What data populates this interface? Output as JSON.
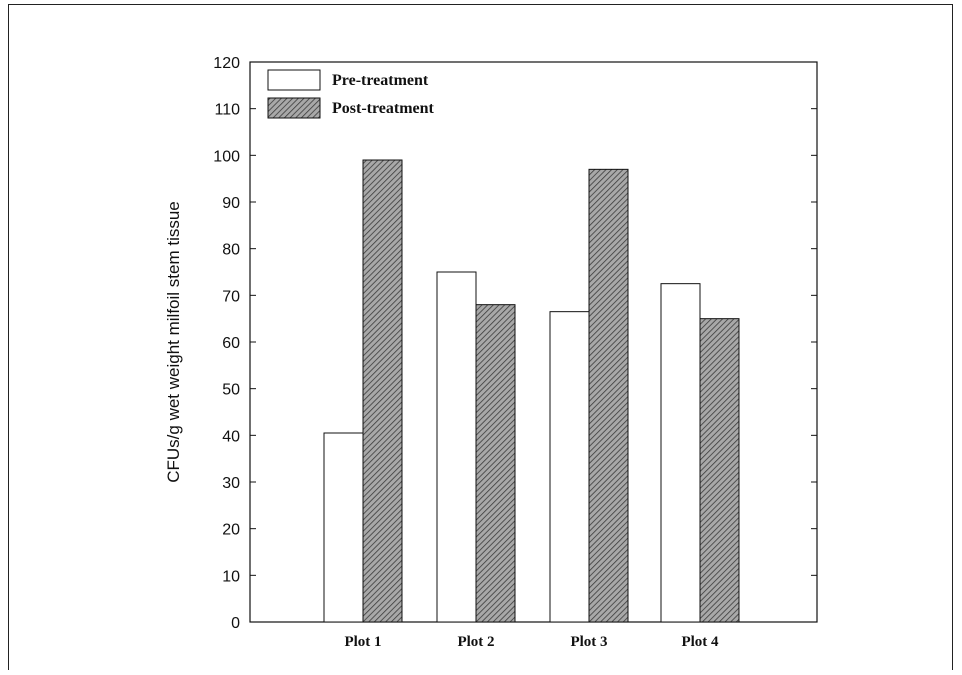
{
  "chart_data": {
    "type": "bar",
    "title": "",
    "xlabel": "",
    "ylabel": "CFUs/g wet weight milfoil stem tissue",
    "ylim": [
      0,
      120
    ],
    "yticks": [
      0,
      10,
      20,
      30,
      40,
      50,
      60,
      70,
      80,
      90,
      100,
      110,
      120
    ],
    "categories": [
      "Plot 1",
      "Plot 2",
      "Plot 3",
      "Plot 4"
    ],
    "series": [
      {
        "name": "Pre-treatment",
        "values": [
          40.5,
          75,
          66.5,
          72.5
        ],
        "fill": "#ffffff",
        "pattern": "none"
      },
      {
        "name": "Post-treatment",
        "values": [
          99,
          68,
          97,
          65
        ],
        "fill": "#9a9a9a",
        "pattern": "diagonal-hatch"
      }
    ],
    "legend_position": "top-left",
    "grid": false
  }
}
